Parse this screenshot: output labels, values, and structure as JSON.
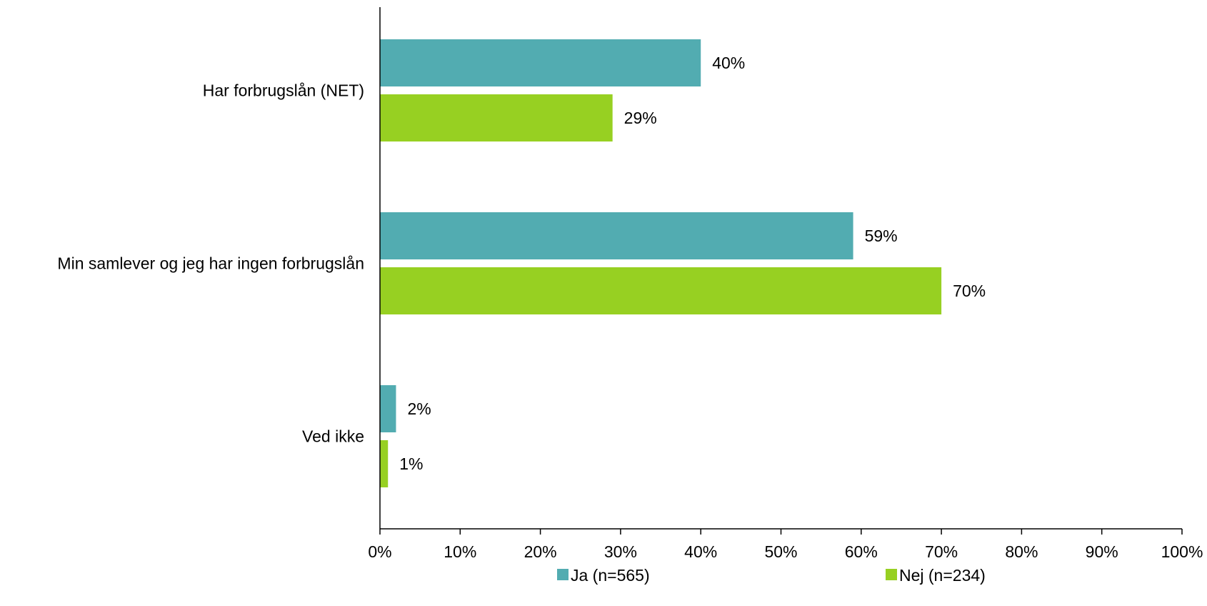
{
  "chart_data": {
    "type": "bar",
    "orientation": "horizontal",
    "categories": [
      "Har forbrugslån (NET)",
      "Min samlever og jeg har ingen forbrugslån",
      "Ved ikke"
    ],
    "series": [
      {
        "name": "Ja (n=565)",
        "values": [
          40,
          59,
          2
        ],
        "labels": [
          "40%",
          "59%",
          "2%"
        ],
        "color": "#52ACB1"
      },
      {
        "name": "Nej (n=234)",
        "values": [
          29,
          70,
          1
        ],
        "labels": [
          "29%",
          "70%",
          "1%"
        ],
        "color": "#97D022"
      }
    ],
    "xlim": [
      0,
      100
    ],
    "x_ticks": [
      "0%",
      "10%",
      "20%",
      "30%",
      "40%",
      "50%",
      "60%",
      "70%",
      "80%",
      "90%",
      "100%"
    ],
    "grid": false,
    "legend_position": "bottom"
  }
}
